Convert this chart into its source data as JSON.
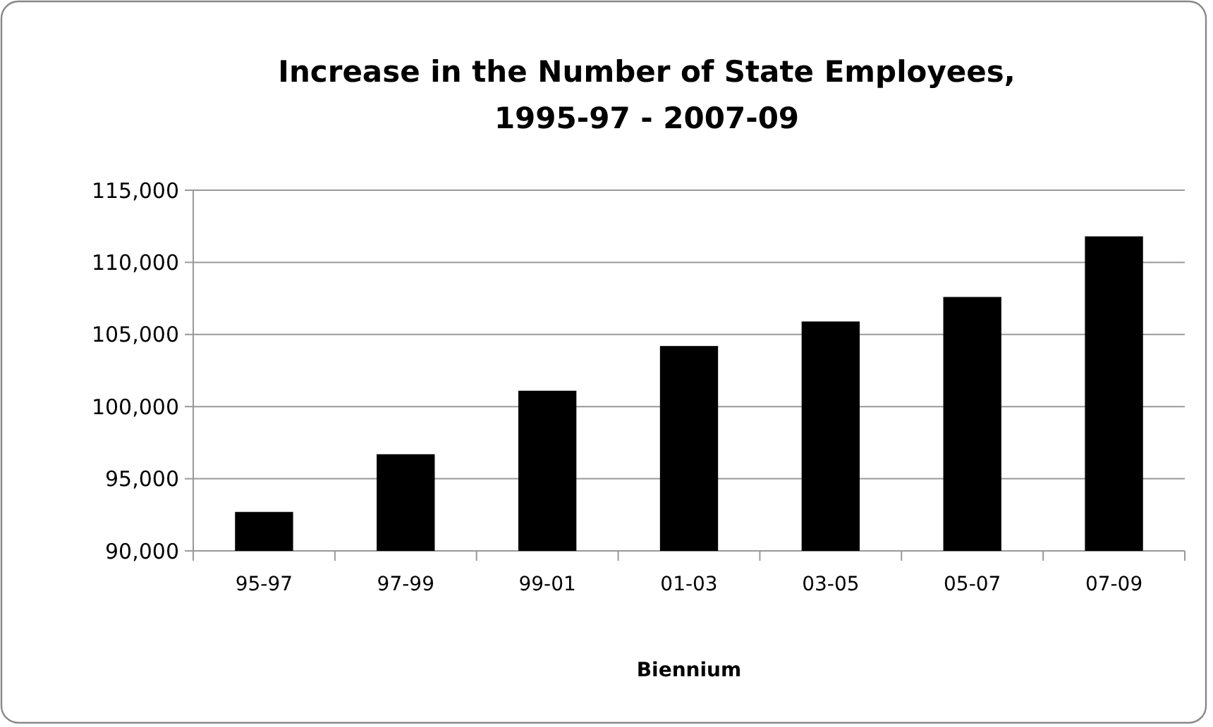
{
  "chart_data": {
    "type": "bar",
    "title": "Increase in the Number of State Employees,\n1995-97 - 2007-09",
    "xlabel": "Biennium",
    "categories": [
      "95-97",
      "97-99",
      "99-01",
      "01-03",
      "03-05",
      "05-07",
      "07-09"
    ],
    "values": [
      92700,
      96700,
      101100,
      104200,
      105900,
      107600,
      111800
    ],
    "color": "#000000",
    "ylim": [
      90000,
      115000
    ],
    "yticks": [
      {
        "value": 90000,
        "label": "90,000"
      },
      {
        "value": 95000,
        "label": "95,000"
      },
      {
        "value": 100000,
        "label": "100,000"
      },
      {
        "value": 105000,
        "label": "105,000"
      },
      {
        "value": 110000,
        "label": "110,000"
      },
      {
        "value": 115000,
        "label": "115,000"
      }
    ],
    "grid": "y"
  }
}
